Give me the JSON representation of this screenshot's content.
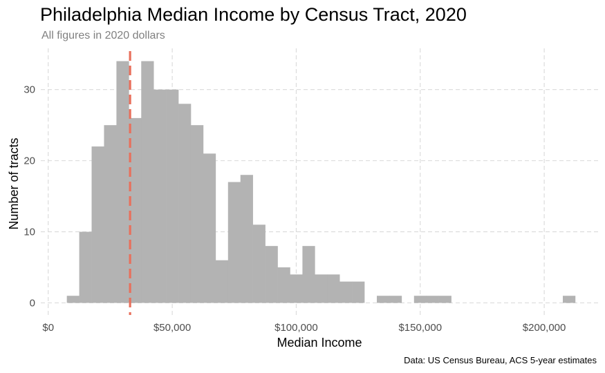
{
  "title": "Philadelphia Median Income by Census Tract, 2020",
  "subtitle": "All figures in 2020 dollars",
  "caption": "Data: US Census Bureau, ACS 5-year estimates",
  "chart_data": {
    "type": "bar",
    "subtype": "histogram",
    "xlabel": "Median Income",
    "ylabel": "Number of tracts",
    "xlim": [
      -3000,
      222000
    ],
    "ylim": [
      -1.7,
      35.8
    ],
    "x_ticks": [
      0,
      50000,
      100000,
      150000,
      200000
    ],
    "x_tick_labels": [
      "$0",
      "$50,000",
      "$100,000",
      "$150,000",
      "$200,000"
    ],
    "y_ticks": [
      0,
      10,
      20,
      30
    ],
    "y_tick_labels": [
      "0",
      "10",
      "20",
      "30"
    ],
    "bin_width": 5000,
    "bin_starts": [
      7500,
      12500,
      17500,
      22500,
      27500,
      32500,
      37500,
      42500,
      47500,
      52500,
      57500,
      62500,
      67500,
      72500,
      77500,
      82500,
      87500,
      92500,
      97500,
      102500,
      107500,
      112500,
      117500,
      122500,
      127500,
      132500,
      137500,
      142500,
      147500,
      152500,
      157500,
      162500,
      167500,
      172500,
      177500,
      182500,
      187500,
      192500,
      197500,
      202500,
      207500
    ],
    "counts": [
      1,
      10,
      22,
      25,
      34,
      26,
      34,
      30,
      30,
      28,
      25,
      21,
      6,
      17,
      18,
      11,
      8,
      5,
      4,
      8,
      4,
      4,
      3,
      3,
      0,
      1,
      1,
      0,
      1,
      1,
      1,
      0,
      0,
      0,
      0,
      0,
      0,
      0,
      0,
      0,
      1
    ],
    "reference_line": {
      "x": 33000,
      "color": "#e8705c",
      "style": "dashed"
    },
    "bar_color": "#b3b3b3",
    "grid": true
  }
}
